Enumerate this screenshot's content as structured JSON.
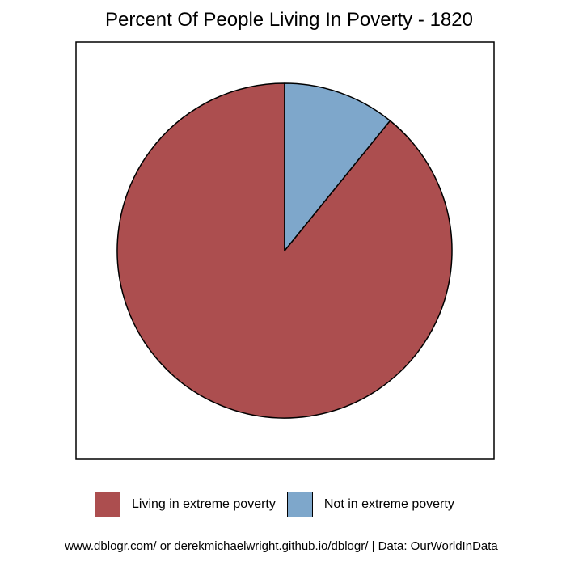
{
  "chart_data": {
    "type": "pie",
    "title": "Percent Of People Living In Poverty - 1820",
    "slices": [
      {
        "label": "Living in extreme poverty",
        "value": 89.15,
        "color": "#AC4E4F"
      },
      {
        "label": "Not in extreme poverty",
        "value": 10.85,
        "color": "#7EA7CB"
      }
    ],
    "start_angle": "12 o'clock",
    "direction": "counterclockwise for first slice",
    "legend": "bottom",
    "caption": "www.dblogr.com/ or derekmichaelwright.github.io/dblogr/ | Data: OurWorldInData"
  }
}
